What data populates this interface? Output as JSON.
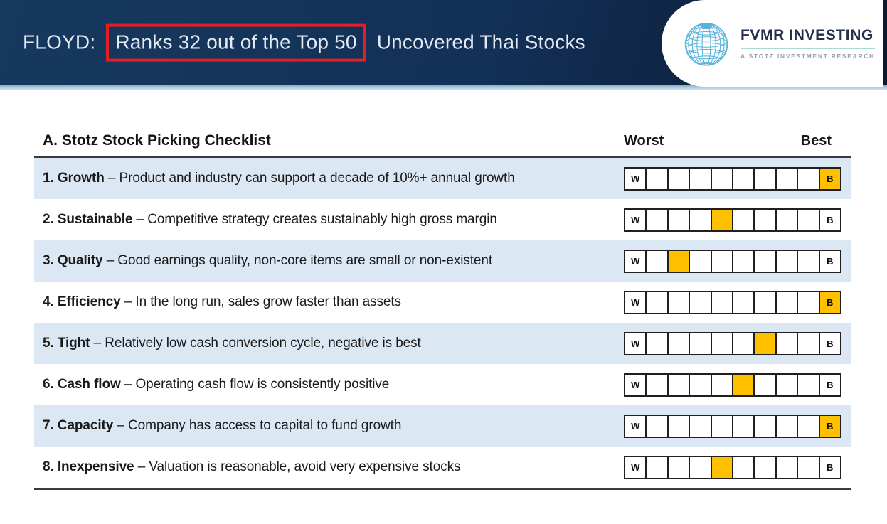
{
  "header": {
    "title_prefix": "FLOYD:",
    "title_highlight": "Ranks 32 out of the Top 50",
    "title_suffix": "Uncovered Thai Stocks",
    "logo": {
      "brand": "FVMR INVESTING",
      "tagline": "A STOTZ INVESTMENT RESEARCH",
      "globe_icon": "globe-wireframe-icon"
    }
  },
  "checklist": {
    "title": "A. Stotz Stock Picking Checklist",
    "scale_header_left": "Worst",
    "scale_header_right": "Best",
    "scale": {
      "cells": 10,
      "worst_letter": "W",
      "best_letter": "B"
    },
    "rows": [
      {
        "label": "1. Growth",
        "description": "– Product and industry can support a decade of 10%+ annual growth",
        "highlight_index": 9
      },
      {
        "label": "2. Sustainable",
        "description": "– Competitive strategy creates sustainably high gross margin",
        "highlight_index": 4
      },
      {
        "label": "3. Quality",
        "description": "– Good earnings quality, non-core items are small or non-existent",
        "highlight_index": 2
      },
      {
        "label": "4. Efficiency",
        "description": "– In the long run, sales grow faster than assets",
        "highlight_index": 9
      },
      {
        "label": "5. Tight",
        "description": "– Relatively low cash conversion cycle, negative is best",
        "highlight_index": 6
      },
      {
        "label": "6. Cash flow",
        "description": "– Operating cash flow is consistently positive",
        "highlight_index": 5
      },
      {
        "label": "7. Capacity",
        "description": "– Company has access to capital to fund growth",
        "highlight_index": 9
      },
      {
        "label": "8. Inexpensive",
        "description": "– Valuation is reasonable, avoid very expensive stocks",
        "highlight_index": 4
      }
    ]
  },
  "colors": {
    "highlight_cell": "#ffc000",
    "stripe": "#dce7f4",
    "annotation_red": "#e31e25",
    "header_navy": "#133057",
    "brand_navy": "#222f4e",
    "globe_blue": "#56b3dc"
  }
}
